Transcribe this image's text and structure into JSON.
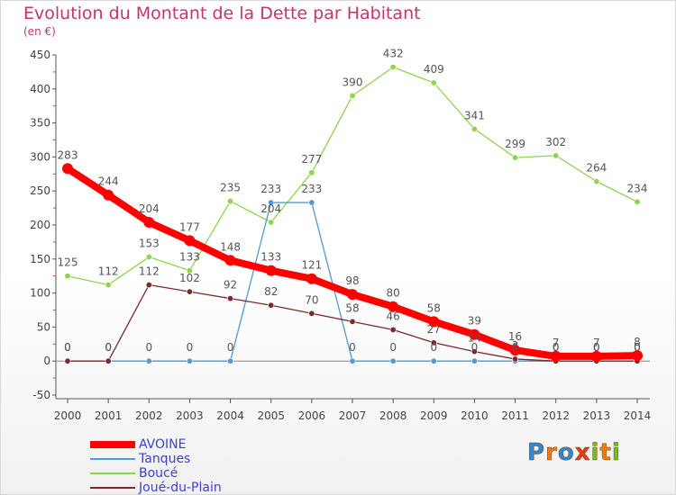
{
  "title": "Evolution du Montant de la Dette par Habitant",
  "unit": "(en €)",
  "logo": {
    "text": "Proxiti",
    "letters": [
      "P",
      "r",
      "o",
      "x",
      "i",
      "t",
      "i"
    ],
    "colors": [
      "#2f86d6",
      "#f07b12",
      "#2f86d6",
      "#e23c1c",
      "#77b82a",
      "#f07b12",
      "#77b82a"
    ]
  },
  "chart_data": {
    "type": "line",
    "x": [
      "2000",
      "2001",
      "2002",
      "2003",
      "2004",
      "2005",
      "2006",
      "2007",
      "2008",
      "2009",
      "2010",
      "2011",
      "2012",
      "2013",
      "2014"
    ],
    "ylim": [
      -50,
      450
    ],
    "yticks": [
      "-50",
      "0",
      "50",
      "100",
      "150",
      "200",
      "250",
      "300",
      "350",
      "400",
      "450"
    ],
    "grid": false,
    "legend_position": "bottom-left",
    "series": [
      {
        "name": "AVOINE",
        "color": "#ff0000",
        "values": [
          283,
          244,
          204,
          177,
          148,
          133,
          121,
          98,
          80,
          58,
          39,
          16,
          7,
          7,
          8
        ],
        "labels": [
          "283",
          "244",
          "204",
          "177",
          "148",
          "133",
          "121",
          "98",
          "80",
          "58",
          "39",
          "16",
          "7",
          "7",
          "8"
        ]
      },
      {
        "name": "Tanques",
        "color": "#5599d0",
        "values": [
          0,
          0,
          0,
          0,
          0,
          233,
          233,
          0,
          0,
          0,
          0,
          0,
          0,
          0,
          0
        ],
        "labels": [
          "0",
          "0",
          "0",
          "0",
          "0",
          "233",
          "233",
          "0",
          "0",
          "0",
          "0",
          "0",
          "0",
          "0",
          "0"
        ]
      },
      {
        "name": "Boucé",
        "color": "#8ed44d",
        "values": [
          125,
          112,
          153,
          133,
          235,
          204,
          277,
          390,
          432,
          409,
          341,
          299,
          302,
          264,
          234
        ],
        "labels": [
          "125",
          "112",
          "153",
          "133",
          "235",
          "204",
          "277",
          "390",
          "432",
          "409",
          "341",
          "299",
          "302",
          "264",
          "234"
        ]
      },
      {
        "name": "Joué-du-Plain",
        "color": "#7a2a2a",
        "values": [
          0,
          0,
          112,
          102,
          92,
          82,
          70,
          58,
          46,
          27,
          14,
          3,
          0,
          0,
          0
        ],
        "labels": [
          "0",
          "0",
          "112",
          "102",
          "92",
          "82",
          "70",
          "58",
          "46",
          "27",
          "14",
          "3",
          "0",
          "0",
          "0"
        ]
      }
    ]
  }
}
